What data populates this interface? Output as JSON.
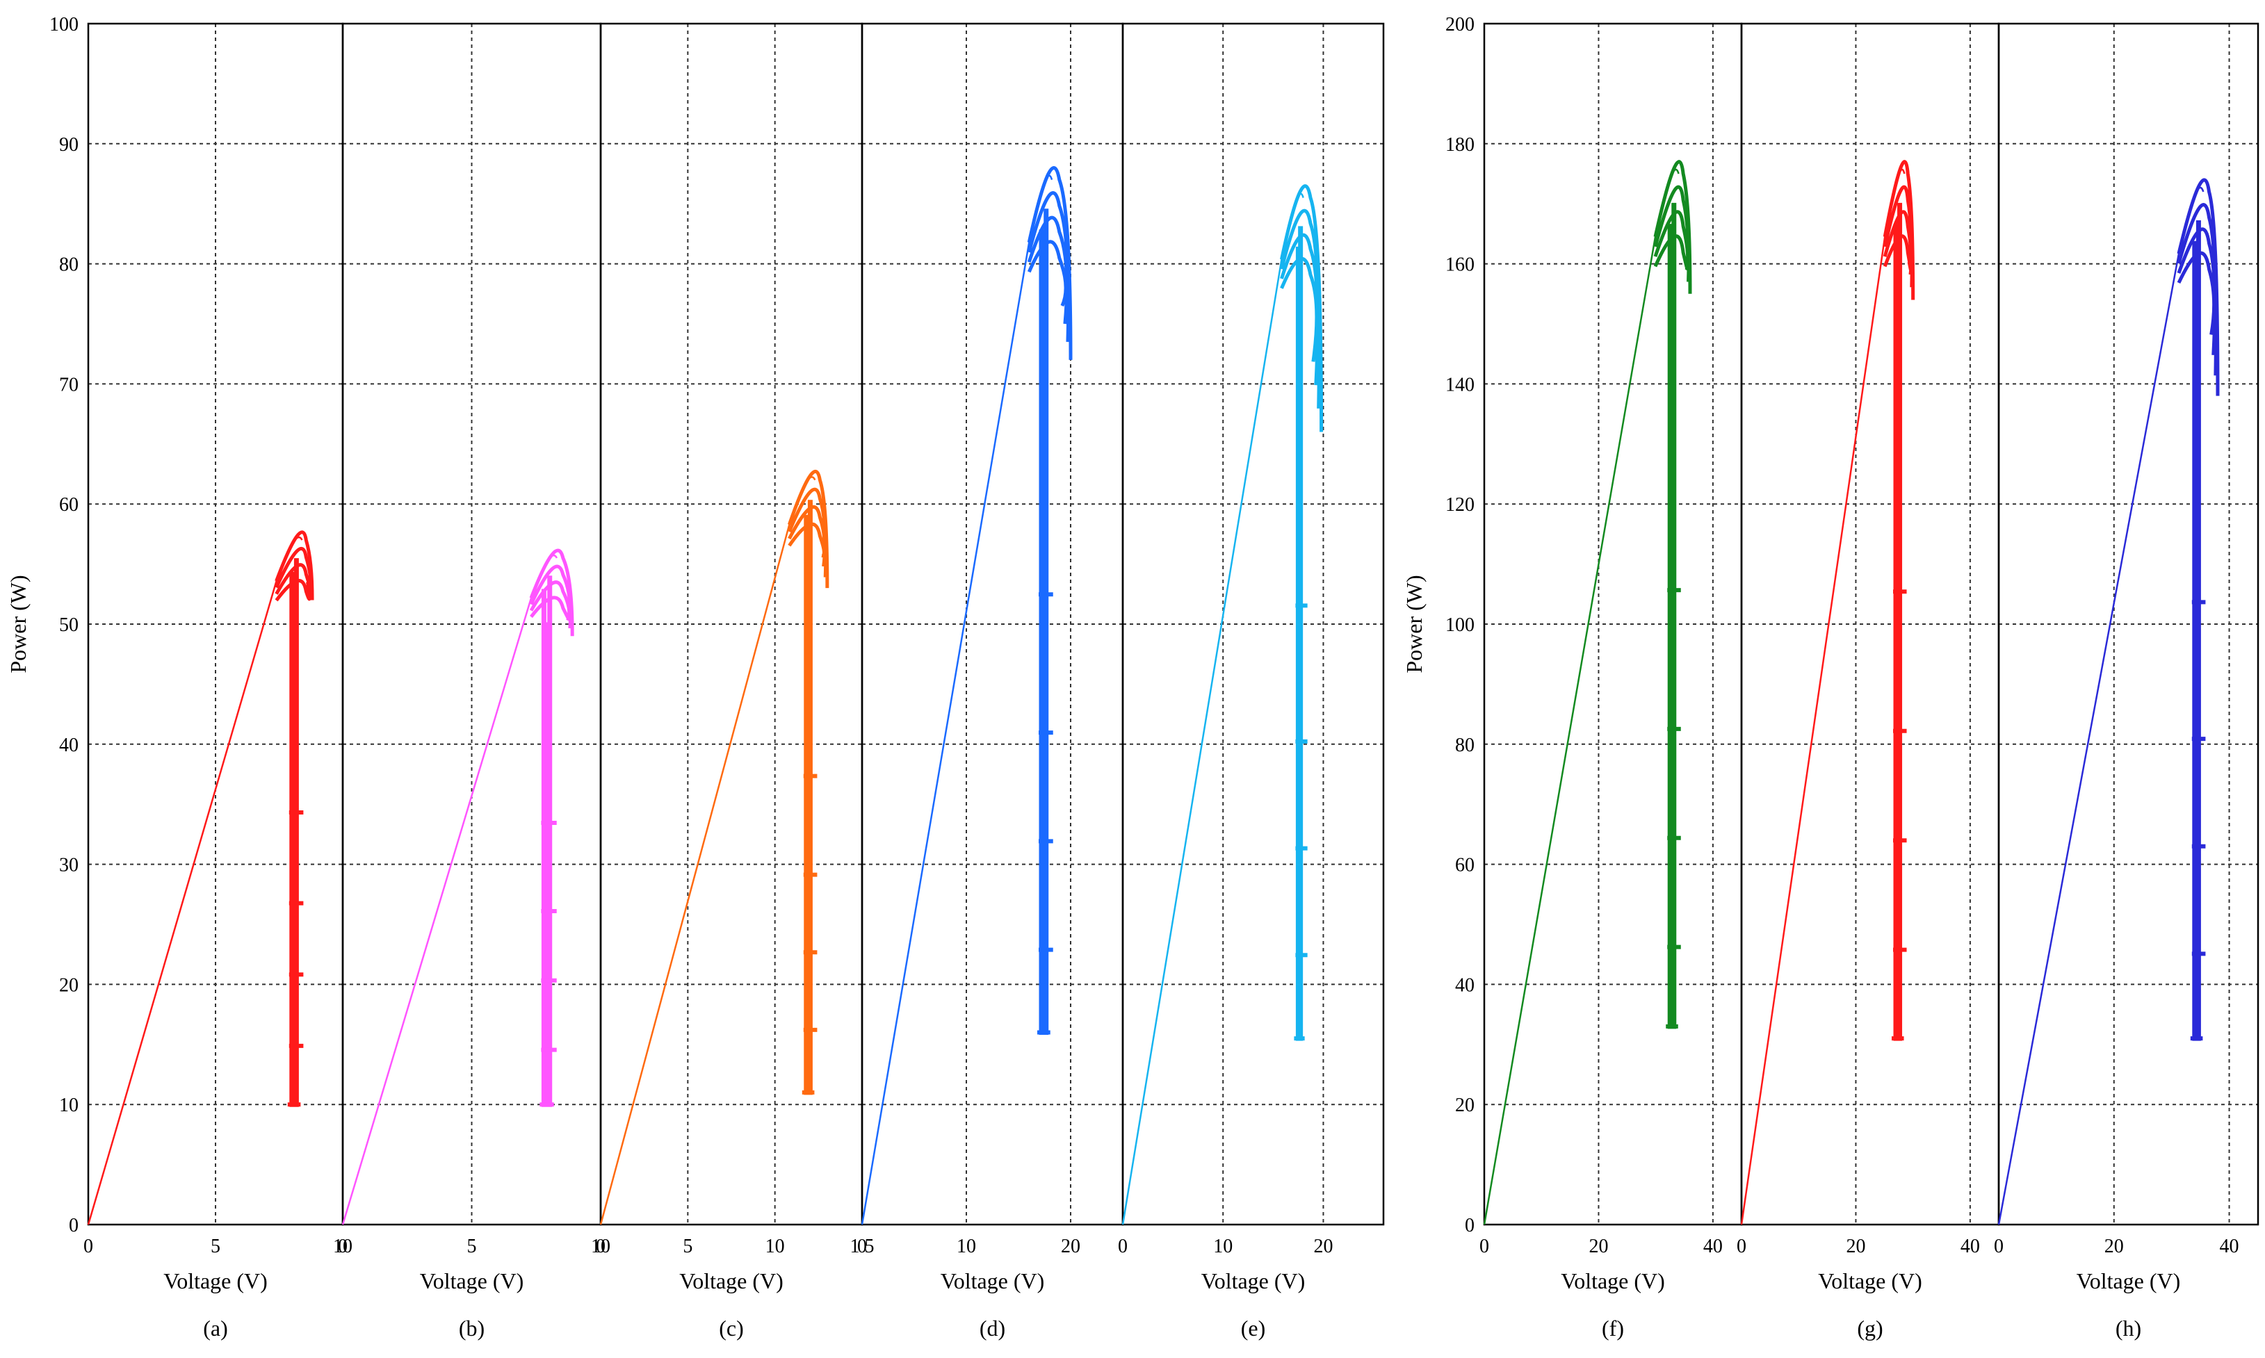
{
  "chart_data": [
    {
      "type": "line",
      "panel": "(a)",
      "xlabel": "Voltage (V)",
      "ylabel": "Power (W)",
      "xlim": [
        0,
        10
      ],
      "ylim": [
        0,
        100
      ],
      "xticks": [
        "0",
        "5",
        "10"
      ],
      "yticks": [
        "0",
        "10",
        "20",
        "30",
        "40",
        "50",
        "60",
        "70",
        "80",
        "90",
        "100"
      ],
      "color": "#ff1a1a",
      "rise": [
        [
          0,
          0
        ],
        [
          7.4,
          53.5
        ],
        [
          8.4,
          57
        ]
      ],
      "loop": [
        [
          8.4,
          57
        ],
        [
          8.8,
          52
        ],
        [
          8.3,
          52.5
        ],
        [
          8.2,
          10
        ],
        [
          7.8,
          10
        ],
        [
          7.9,
          52
        ]
      ],
      "dip_v": 8.0,
      "dip_p": 10,
      "peak_v": 8.4,
      "peak_p": 57,
      "end_v": 8.8,
      "end_p": 52
    },
    {
      "type": "line",
      "panel": "(b)",
      "xlabel": "Voltage (V)",
      "ylim": [
        0,
        100
      ],
      "xlim": [
        0,
        10
      ],
      "xticks": [
        "0",
        "5",
        "10"
      ],
      "color": "#ff55ff",
      "dip_v": 7.8,
      "dip_p": 10,
      "peak_v": 8.3,
      "peak_p": 55.5,
      "end_v": 8.9,
      "end_p": 49
    },
    {
      "type": "line",
      "panel": "(c)",
      "xlabel": "Voltage (V)",
      "xlim": [
        0,
        15
      ],
      "ylim": [
        0,
        100
      ],
      "xticks": [
        "0",
        "5",
        "10",
        "1 5"
      ],
      "color": "#ff6a10",
      "dip_v": 11.8,
      "dip_p": 11,
      "peak_v": 12.3,
      "peak_p": 62,
      "end_v": 13.0,
      "end_p": 53
    },
    {
      "type": "line",
      "panel": "(d)",
      "xlabel": "Voltage (V)",
      "xlim": [
        0,
        25
      ],
      "ylim": [
        0,
        100
      ],
      "xticks": [
        "0",
        "10",
        "20"
      ],
      "color": "#1a6aff",
      "dip_v": 17.2,
      "dip_p": 16,
      "peak_v": 18.2,
      "peak_p": 87,
      "end_v": 20.0,
      "end_p": 72
    },
    {
      "type": "line",
      "panel": "(e)",
      "xlabel": "Voltage (V)",
      "xlim": [
        0,
        26
      ],
      "ylim": [
        0,
        100
      ],
      "xticks": [
        "0",
        "10",
        "20"
      ],
      "color": "#16b4f0",
      "dip_v": 17.5,
      "dip_p": 15.5,
      "peak_v": 18.0,
      "peak_p": 85.5,
      "end_v": 19.8,
      "end_p": 66
    },
    {
      "type": "line",
      "panel": "(f)",
      "xlabel": "Voltage (V)",
      "ylabel": "Power (W)",
      "xlim": [
        0,
        45
      ],
      "ylim": [
        0,
        200
      ],
      "xticks": [
        "0",
        "20",
        "40"
      ],
      "yticks": [
        "0",
        "20",
        "40",
        "60",
        "80",
        "100",
        "120",
        "140",
        "160",
        "180",
        "200"
      ],
      "color": "#138a20",
      "dip_v": 32.5,
      "dip_p": 33,
      "peak_v": 34.0,
      "peak_p": 175,
      "end_v": 36.0,
      "end_p": 155
    },
    {
      "type": "line",
      "panel": "(g)",
      "xlabel": "Voltage (V)",
      "xlim": [
        0,
        45
      ],
      "ylim": [
        0,
        200
      ],
      "xticks": [
        "0",
        "20",
        "40"
      ],
      "color": "#ff1a1a",
      "dip_v": 27.0,
      "dip_p": 31,
      "peak_v": 28.5,
      "peak_p": 175,
      "end_v": 30.0,
      "end_p": 154
    },
    {
      "type": "line",
      "panel": "(h)",
      "xlabel": "Voltage (V)",
      "xlim": [
        0,
        45
      ],
      "ylim": [
        0,
        200
      ],
      "xticks": [
        "0",
        "20",
        "40"
      ],
      "color": "#2a2ad8",
      "dip_v": 34.0,
      "dip_p": 31,
      "peak_v": 35.5,
      "peak_p": 172,
      "end_v": 38.0,
      "end_p": 138
    }
  ]
}
